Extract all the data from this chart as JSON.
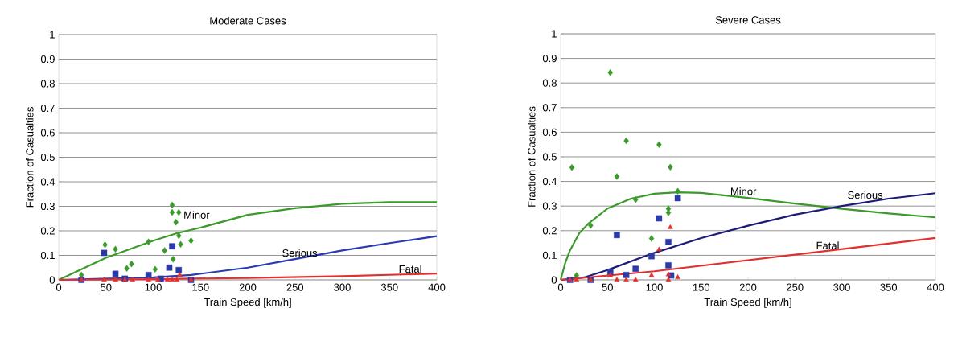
{
  "chart_data": [
    {
      "type": "scatter",
      "title": "Moderate Cases",
      "xlabel": "Train Speed [km/h]",
      "ylabel": "Fraction of Casualties",
      "xlim": [
        0,
        400
      ],
      "ylim": [
        0,
        1
      ],
      "xticks": [
        0,
        50,
        100,
        150,
        200,
        250,
        300,
        350,
        400
      ],
      "yticks": [
        0,
        0.1,
        0.2,
        0.3,
        0.4,
        0.5,
        0.6,
        0.7,
        0.8,
        0.9,
        1
      ],
      "grid": "y",
      "series": [
        {
          "type": "scatter",
          "marker": "diamond",
          "color": "#3a9a2a",
          "x": [
            24,
            49,
            60,
            72,
            77,
            95,
            102,
            112,
            120,
            120,
            127,
            124,
            121,
            127,
            129,
            140
          ],
          "values": [
            0.02,
            0.143,
            0.125,
            0.047,
            0.065,
            0.155,
            0.043,
            0.12,
            0.305,
            0.275,
            0.275,
            0.235,
            0.084,
            0.18,
            0.145,
            0.16
          ]
        },
        {
          "type": "scatter",
          "marker": "square",
          "color": "#2a3aa8",
          "x": [
            24,
            48,
            60,
            70,
            95,
            108,
            117,
            120,
            127,
            140
          ],
          "values": [
            0,
            0.11,
            0.025,
            0.005,
            0.02,
            0.005,
            0.05,
            0.137,
            0.04,
            0
          ]
        },
        {
          "type": "scatter",
          "marker": "triangle",
          "color": "#e03030",
          "x": [
            24,
            48,
            60,
            70,
            78,
            95,
            105,
            115,
            120,
            125,
            128,
            140
          ],
          "values": [
            0,
            0,
            0,
            0,
            0,
            0,
            0,
            0,
            0,
            0,
            0.02,
            0
          ]
        },
        {
          "type": "line",
          "marker": "none",
          "name": "Minor",
          "color": "#3a9a2a",
          "x": [
            0,
            25,
            50,
            75,
            100,
            125,
            150,
            200,
            250,
            300,
            350,
            400
          ],
          "values": [
            0,
            0.045,
            0.09,
            0.125,
            0.16,
            0.19,
            0.213,
            0.265,
            0.292,
            0.31,
            0.317,
            0.317
          ]
        },
        {
          "type": "line",
          "marker": "none",
          "name": "Serious",
          "color": "#2a3ab0",
          "x": [
            0,
            50,
            100,
            140,
            200,
            250,
            300,
            350,
            400
          ],
          "values": [
            0,
            0.005,
            0.01,
            0.02,
            0.05,
            0.085,
            0.12,
            0.15,
            0.178
          ]
        },
        {
          "type": "line",
          "marker": "none",
          "name": "Fatal",
          "color": "#e03030",
          "x": [
            0,
            100,
            200,
            300,
            400
          ],
          "values": [
            0,
            0.003,
            0.008,
            0.015,
            0.026
          ]
        }
      ]
    },
    {
      "type": "scatter",
      "title": "Severe Cases",
      "xlabel": "Train Speed [km/h]",
      "ylabel": "Fraction of Casualties",
      "xlim": [
        0,
        400
      ],
      "ylim": [
        0,
        1
      ],
      "xticks": [
        0,
        50,
        100,
        150,
        200,
        250,
        300,
        350,
        400
      ],
      "yticks": [
        0,
        0.1,
        0.2,
        0.3,
        0.4,
        0.5,
        0.6,
        0.7,
        0.8,
        0.9,
        1
      ],
      "grid": "y",
      "series": [
        {
          "type": "scatter",
          "marker": "diamond",
          "color": "#3a9a2a",
          "x": [
            12,
            17,
            32,
            53,
            60,
            70,
            80,
            97,
            105,
            115,
            115,
            117,
            125
          ],
          "values": [
            0.457,
            0.018,
            0.221,
            0.842,
            0.42,
            0.565,
            0.326,
            0.168,
            0.55,
            0.289,
            0.273,
            0.458,
            0.36
          ]
        },
        {
          "type": "scatter",
          "marker": "square",
          "color": "#2a3aa8",
          "x": [
            10,
            32,
            53,
            60,
            70,
            80,
            97,
            105,
            115,
            115,
            118,
            125
          ],
          "values": [
            0,
            0,
            0.033,
            0.182,
            0.02,
            0.045,
            0.096,
            0.25,
            0.154,
            0.059,
            0.018,
            0.332
          ]
        },
        {
          "type": "scatter",
          "marker": "triangle",
          "color": "#e03030",
          "x": [
            10,
            17,
            32,
            53,
            60,
            70,
            80,
            97,
            105,
            115,
            115,
            117,
            125
          ],
          "values": [
            0,
            0,
            0,
            0.018,
            0,
            0,
            0,
            0.018,
            0.123,
            0.021,
            0,
            0.213,
            0.01
          ]
        },
        {
          "type": "line",
          "marker": "none",
          "name": "Minor",
          "color": "#3a9a2a",
          "x": [
            0,
            5,
            10,
            20,
            30,
            50,
            75,
            100,
            125,
            150,
            200,
            250,
            300,
            350,
            400
          ],
          "values": [
            0,
            0.07,
            0.12,
            0.19,
            0.23,
            0.29,
            0.33,
            0.35,
            0.356,
            0.353,
            0.333,
            0.31,
            0.289,
            0.27,
            0.254
          ]
        },
        {
          "type": "line",
          "marker": "none",
          "name": "Serious",
          "color": "#1c1c78",
          "x": [
            0,
            25,
            50,
            100,
            150,
            200,
            250,
            300,
            350,
            400
          ],
          "values": [
            0,
            0.01,
            0.04,
            0.11,
            0.17,
            0.22,
            0.265,
            0.3,
            0.33,
            0.352
          ]
        },
        {
          "type": "line",
          "marker": "none",
          "name": "Fatal",
          "color": "#e03030",
          "x": [
            0,
            100,
            200,
            300,
            400
          ],
          "values": [
            0,
            0.035,
            0.08,
            0.125,
            0.17
          ]
        }
      ]
    }
  ]
}
